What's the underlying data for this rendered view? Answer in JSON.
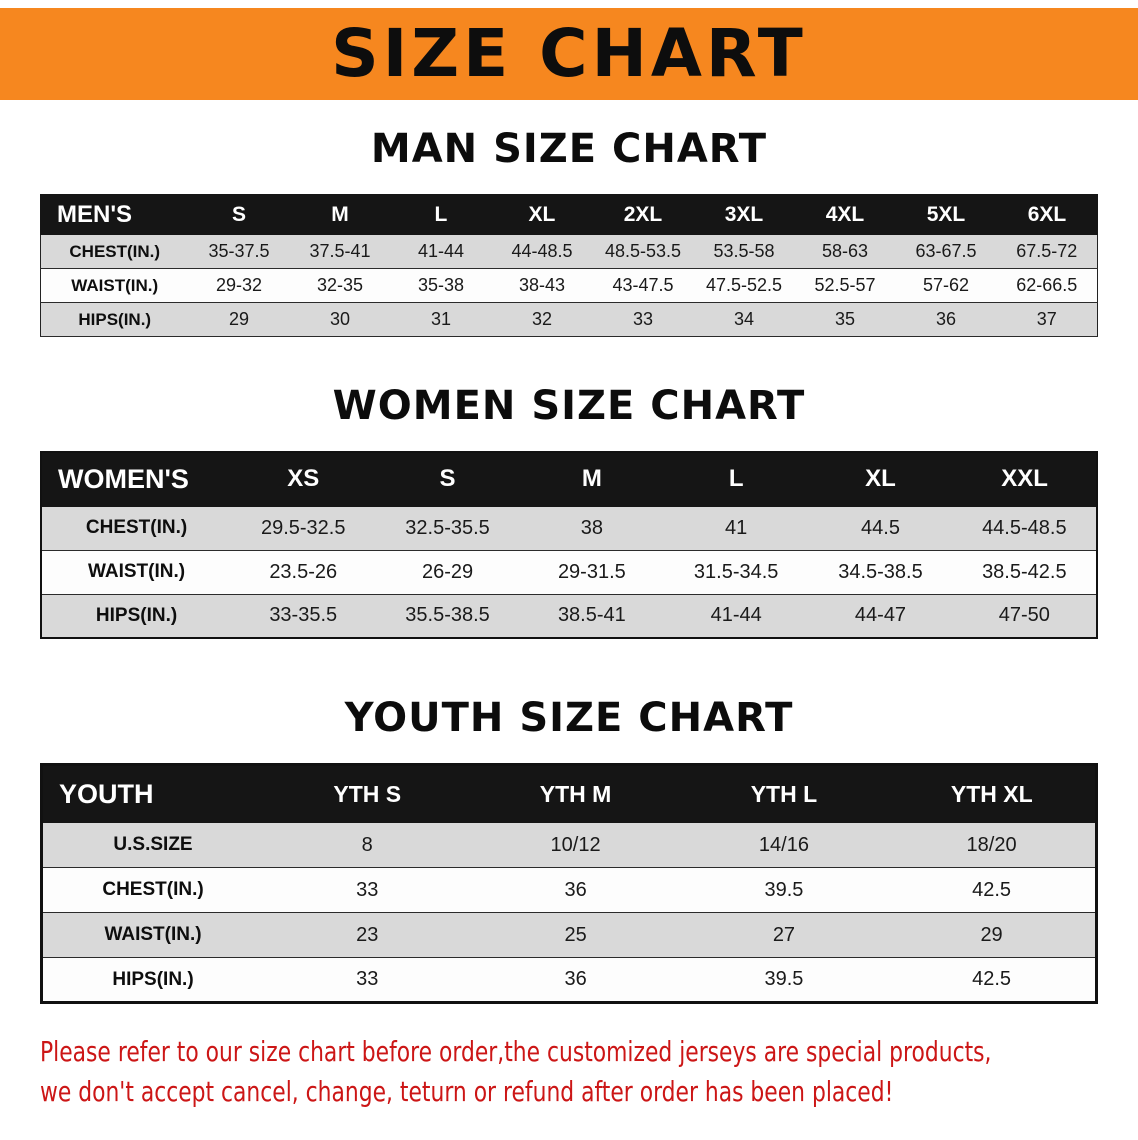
{
  "banner": {
    "title": "SIZE CHART",
    "bg_color": "#f6871f",
    "text_color": "#0d0d0d"
  },
  "sections": [
    {
      "id": "men",
      "heading": "MAN SIZE CHART",
      "table": {
        "corner_label": "MEN'S",
        "columns": [
          "S",
          "M",
          "L",
          "XL",
          "2XL",
          "3XL",
          "4XL",
          "5XL",
          "6XL"
        ],
        "rows": [
          {
            "label": "CHEST(IN.)",
            "values": [
              "35-37.5",
              "37.5-41",
              "41-44",
              "44-48.5",
              "48.5-53.5",
              "53.5-58",
              "58-63",
              "63-67.5",
              "67.5-72"
            ]
          },
          {
            "label": "WAIST(IN.)",
            "values": [
              "29-32",
              "32-35",
              "35-38",
              "38-43",
              "43-47.5",
              "47.5-52.5",
              "52.5-57",
              "57-62",
              "62-66.5"
            ]
          },
          {
            "label": "HIPS(IN.)",
            "values": [
              "29",
              "30",
              "31",
              "32",
              "33",
              "34",
              "35",
              "36",
              "37"
            ]
          }
        ]
      }
    },
    {
      "id": "women",
      "heading": "WOMEN SIZE CHART",
      "table": {
        "corner_label": "WOMEN'S",
        "columns": [
          "XS",
          "S",
          "M",
          "L",
          "XL",
          "XXL"
        ],
        "rows": [
          {
            "label": "CHEST(IN.)",
            "values": [
              "29.5-32.5",
              "32.5-35.5",
              "38",
              "41",
              "44.5",
              "44.5-48.5"
            ]
          },
          {
            "label": "WAIST(IN.)",
            "values": [
              "23.5-26",
              "26-29",
              "29-31.5",
              "31.5-34.5",
              "34.5-38.5",
              "38.5-42.5"
            ]
          },
          {
            "label": "HIPS(IN.)",
            "values": [
              "33-35.5",
              "35.5-38.5",
              "38.5-41",
              "41-44",
              "44-47",
              "47-50"
            ]
          }
        ]
      }
    },
    {
      "id": "youth",
      "heading": "YOUTH SIZE CHART",
      "table": {
        "corner_label": "YOUTH",
        "columns": [
          "YTH S",
          "YTH M",
          "YTH L",
          "YTH XL"
        ],
        "rows": [
          {
            "label": "U.S.SIZE",
            "values": [
              "8",
              "10/12",
              "14/16",
              "18/20"
            ]
          },
          {
            "label": "CHEST(IN.)",
            "values": [
              "33",
              "36",
              "39.5",
              "42.5"
            ]
          },
          {
            "label": "WAIST(IN.)",
            "values": [
              "23",
              "25",
              "27",
              "29"
            ]
          },
          {
            "label": "HIPS(IN.)",
            "values": [
              "33",
              "36",
              "39.5",
              "42.5"
            ]
          }
        ]
      }
    }
  ],
  "footer": {
    "color": "#cc1616",
    "line1": "Please refer to our size chart before order,the customized jerseys are special products,",
    "line2": "we don't accept cancel, change, teturn or refund after order has been placed!"
  }
}
